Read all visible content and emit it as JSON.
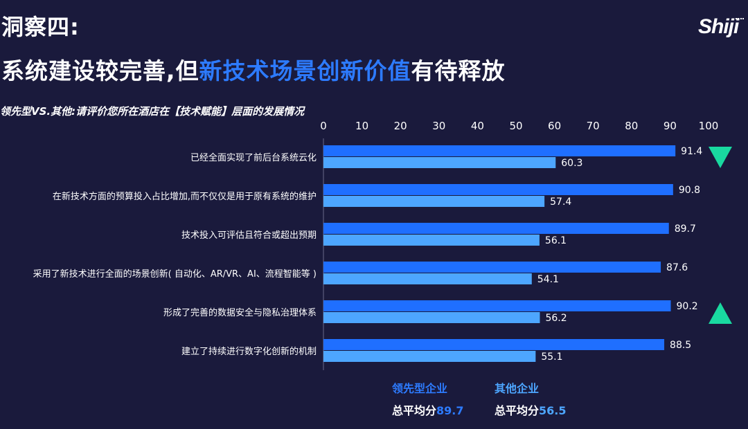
{
  "title_line1": "洞察四:",
  "title_line2_pre": "系统建设较完善,但",
  "title_line2_highlight": "新技术场景创新价值",
  "title_line2_post": "有待释放",
  "logo_text": "Shiji",
  "question": "领先型VS.其他:请评价您所在酒店在【技术赋能】层面的发展情况",
  "colors": {
    "leader": "#1f6fff",
    "other": "#4da6ff",
    "marker": "#19d9a0",
    "background": "#1a1a3c"
  },
  "chart_data": {
    "type": "bar",
    "orientation": "horizontal",
    "categories": [
      "已经全面实现了前后台系统云化",
      "在新技术方面的预算投入占比增加,而不仅仅是用于原有系统的维护",
      "技术投入可评估且符合或超出预期",
      "采用了新技术进行全面的场景创新( 自动化、AR/VR、AI、流程智能等 )",
      "形成了完善的数据安全与隐私治理体系",
      "建立了持续进行数字化创新的机制"
    ],
    "series": [
      {
        "name": "领先型企业",
        "values": [
          91.4,
          90.8,
          89.7,
          87.6,
          90.2,
          88.5
        ]
      },
      {
        "name": "其他企业",
        "values": [
          60.3,
          57.4,
          56.1,
          54.1,
          56.2,
          55.1
        ]
      }
    ],
    "x_ticks": [
      0,
      10,
      20,
      30,
      40,
      50,
      60,
      70,
      80,
      90,
      100
    ],
    "xlim": [
      0,
      100
    ],
    "axis_position": "top",
    "grid": false,
    "markers": [
      {
        "row": 0,
        "shape": "triangle-down"
      },
      {
        "row": 4,
        "shape": "triangle-up"
      }
    ]
  },
  "legend": {
    "leader_label": "领先型企业",
    "other_label": "其他企业",
    "avg_prefix": "总平均分",
    "leader_avg": "89.7",
    "other_avg": "56.5"
  }
}
